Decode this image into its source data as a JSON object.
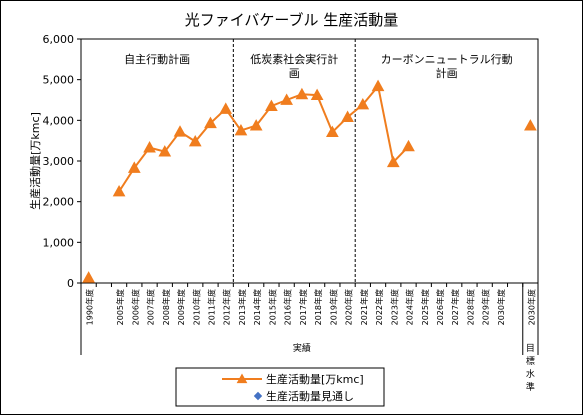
{
  "chart_data": {
    "type": "line",
    "title": "光ファイバケーブル 生産活動量",
    "xlabel": "",
    "ylabel": "生産活動量[万kmc]",
    "ylim": [
      0,
      6000
    ],
    "yticks": [
      "0",
      "1,000",
      "2,000",
      "3,000",
      "4,000",
      "5,000",
      "6,000"
    ],
    "grid": false,
    "legend_position": "bottom",
    "categories": [
      "1990年度",
      "",
      "2005年度",
      "2006年度",
      "2007年度",
      "2008年度",
      "2009年度",
      "2010年度",
      "2011年度",
      "2012年度",
      "2013年度",
      "2014年度",
      "2015年度",
      "2016年度",
      "2017年度",
      "2018年度",
      "2019年度",
      "2020年度",
      "2021年度",
      "2022年度",
      "2023年度",
      "2024年度",
      "2025年度",
      "2026年度",
      "2027年度",
      "2028年度",
      "2029年度",
      "2030年度",
      "",
      "2030年度"
    ],
    "series": [
      {
        "name": "生産活動量[万kmc]",
        "color": "#f07d1e",
        "marker": "triangle",
        "segments": [
          [
            {
              "x": 0,
              "y": 130
            }
          ],
          [
            {
              "x": 2,
              "y": 2250
            },
            {
              "x": 3,
              "y": 2830
            },
            {
              "x": 4,
              "y": 3330
            },
            {
              "x": 5,
              "y": 3230
            },
            {
              "x": 6,
              "y": 3720
            },
            {
              "x": 7,
              "y": 3480
            },
            {
              "x": 8,
              "y": 3930
            },
            {
              "x": 9,
              "y": 4280
            },
            {
              "x": 10,
              "y": 3750
            },
            {
              "x": 11,
              "y": 3870
            },
            {
              "x": 12,
              "y": 4350
            },
            {
              "x": 13,
              "y": 4500
            },
            {
              "x": 14,
              "y": 4640
            },
            {
              "x": 15,
              "y": 4620
            },
            {
              "x": 16,
              "y": 3710
            },
            {
              "x": 17,
              "y": 4080
            },
            {
              "x": 18,
              "y": 4390
            },
            {
              "x": 19,
              "y": 4840
            },
            {
              "x": 20,
              "y": 2970
            },
            {
              "x": 21,
              "y": 3360
            }
          ],
          [
            {
              "x": 29,
              "y": 3870
            }
          ]
        ]
      },
      {
        "name": "生産活動量見通し",
        "color": "#4472c4",
        "marker": "diamond",
        "segments": []
      }
    ],
    "periods": [
      {
        "label_lines": [
          "自主行動計画"
        ],
        "from": 0,
        "to": 9
      },
      {
        "label_lines": [
          "低炭素社会実行計",
          "画"
        ],
        "from": 10,
        "to": 17
      },
      {
        "label_lines": [
          "カーボンニュートラル行動",
          "計画"
        ],
        "from": 18,
        "to": 29
      }
    ],
    "bottom_groups": [
      {
        "label": "実績"
      },
      {
        "label": "目標水準"
      }
    ]
  }
}
